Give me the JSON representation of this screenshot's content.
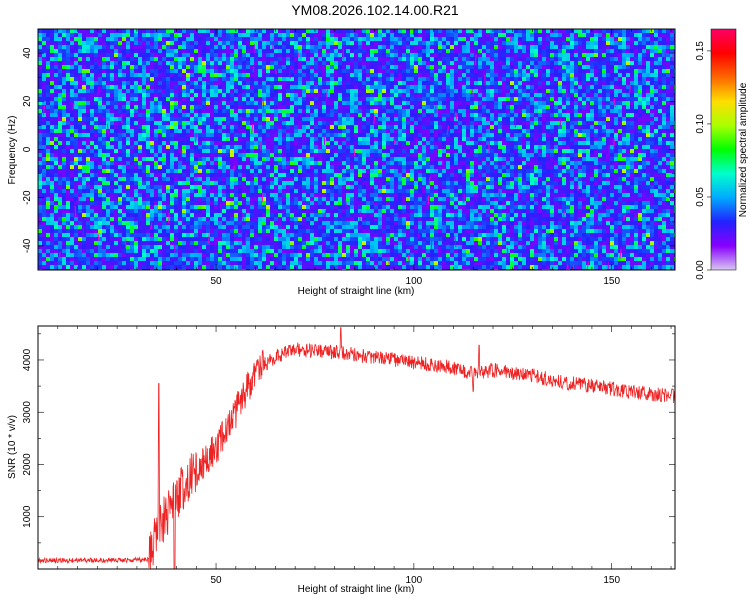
{
  "title": "YM08.2026.102.14.00.R21",
  "colors": {
    "line": "#ee2222",
    "frame": "#000000"
  },
  "chart_data": [
    {
      "type": "heatmap",
      "name": "spectrogram",
      "xlabel": "Height of straight line (km)",
      "ylabel": "Frequency (Hz)",
      "xlim": [
        5,
        166
      ],
      "ylim": [
        -50,
        50
      ],
      "xticks": [
        50,
        100,
        150
      ],
      "yticks": [
        -40,
        -20,
        0,
        20,
        40
      ],
      "colorbar": {
        "label": "Normalized spectral amplitude",
        "range": [
          0.0,
          0.165
        ],
        "ticks": [
          "0.00",
          "0.05",
          "0.10",
          "0.15"
        ],
        "tick_values": [
          0.0,
          0.05,
          0.1,
          0.15
        ],
        "colors": [
          "#d8c8f0",
          "#8800ff",
          "#2222ff",
          "#00aaff",
          "#00ffcc",
          "#00ff00",
          "#aaff00",
          "#ffdd00",
          "#ff6600",
          "#ff0000",
          "#ff0066"
        ]
      },
      "background_level": 0.03,
      "noise": "random speckle, mostly 0.02-0.06 with sparse peaks up to 0.09"
    },
    {
      "type": "line",
      "name": "snr",
      "xlabel": "Height of straight line (km)",
      "ylabel": "SNR (10 * v/v)",
      "xlim": [
        5,
        166
      ],
      "ylim": [
        0,
        4650
      ],
      "xticks": [
        50,
        100,
        150
      ],
      "yticks": [
        1000,
        2000,
        3000,
        4000
      ],
      "envelope": {
        "x": [
          5,
          25,
          33,
          35,
          38,
          42,
          45,
          50,
          55,
          58,
          62,
          66,
          70,
          80,
          90,
          100,
          110,
          115,
          120,
          130,
          140,
          150,
          160,
          166
        ],
        "y": [
          160,
          170,
          180,
          700,
          1100,
          1600,
          1900,
          2300,
          3000,
          3500,
          3900,
          4100,
          4200,
          4150,
          4050,
          3950,
          3850,
          3750,
          3800,
          3700,
          3550,
          3450,
          3350,
          3300
        ]
      },
      "spikes": [
        {
          "x": 35.5,
          "y": 3550
        },
        {
          "x": 39.5,
          "y": 0
        },
        {
          "x": 81.5,
          "y": 4620
        },
        {
          "x": 115,
          "y": 3400
        },
        {
          "x": 116.5,
          "y": 4280
        }
      ]
    }
  ]
}
